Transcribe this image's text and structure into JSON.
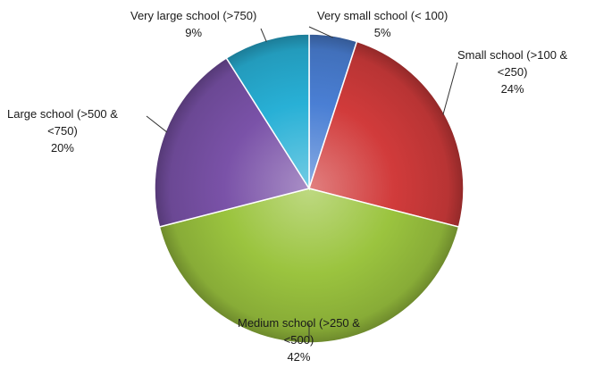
{
  "chart_data": {
    "type": "pie",
    "title": "",
    "slices": [
      {
        "label": "Very small school (< 100)",
        "label_lines": [
          "Very small school (< 100)"
        ],
        "value": 5,
        "value_label": "5%",
        "color": "#4a7fd4"
      },
      {
        "label": "Small school (>100 & <250)",
        "label_lines": [
          "Small school (>100 &",
          "<250)"
        ],
        "value": 24,
        "value_label": "24%",
        "color": "#d13b3b"
      },
      {
        "label": "Medium school (>250 & <500)",
        "label_lines": [
          "Medium school (>250 &",
          "<500)"
        ],
        "value": 42,
        "value_label": "42%",
        "color": "#9bc43f"
      },
      {
        "label": "Large school (>500 & <750)",
        "label_lines": [
          "Large school (>500 &",
          "<750)"
        ],
        "value": 20,
        "value_label": "20%",
        "color": "#7a52a8"
      },
      {
        "label": "Very large school (>750)",
        "label_lines": [
          "Very large school (>750)"
        ],
        "value": 9,
        "value_label": "9%",
        "color": "#28b0d6"
      }
    ]
  }
}
